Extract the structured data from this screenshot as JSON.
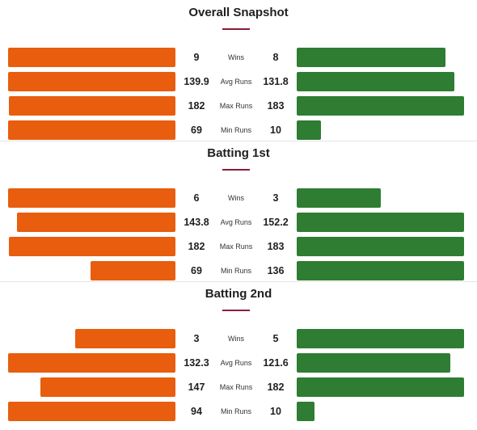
{
  "colors": {
    "team_a": "#e85d0e",
    "team_b": "#2e7d32",
    "accent": "#8b1d3a"
  },
  "chart_data": [
    {
      "type": "bar",
      "title": "Overall Snapshot",
      "categories": [
        "Wins",
        "Avg Runs",
        "Max Runs",
        "Min Runs"
      ],
      "series": [
        {
          "values": [
            9,
            139.9,
            182,
            69
          ]
        },
        {
          "values": [
            8,
            131.8,
            183,
            10
          ]
        }
      ],
      "labels": [
        [
          "9",
          "8"
        ],
        [
          "139.9",
          "131.8"
        ],
        [
          "182",
          "183"
        ],
        [
          "69",
          "10"
        ]
      ]
    },
    {
      "type": "bar",
      "title": "Batting 1st",
      "categories": [
        "Wins",
        "Avg Runs",
        "Max Runs",
        "Min Runs"
      ],
      "series": [
        {
          "values": [
            6,
            143.8,
            182,
            69
          ]
        },
        {
          "values": [
            3,
            152.2,
            183,
            136
          ]
        }
      ],
      "labels": [
        [
          "6",
          "3"
        ],
        [
          "143.8",
          "152.2"
        ],
        [
          "182",
          "183"
        ],
        [
          "69",
          "136"
        ]
      ]
    },
    {
      "type": "bar",
      "title": "Batting 2nd",
      "categories": [
        "Wins",
        "Avg Runs",
        "Max Runs",
        "Min Runs"
      ],
      "series": [
        {
          "values": [
            3,
            132.3,
            147,
            94
          ]
        },
        {
          "values": [
            5,
            121.6,
            182,
            10
          ]
        }
      ],
      "labels": [
        [
          "3",
          "5"
        ],
        [
          "132.3",
          "121.6"
        ],
        [
          "147",
          "182"
        ],
        [
          "94",
          "10"
        ]
      ]
    }
  ]
}
